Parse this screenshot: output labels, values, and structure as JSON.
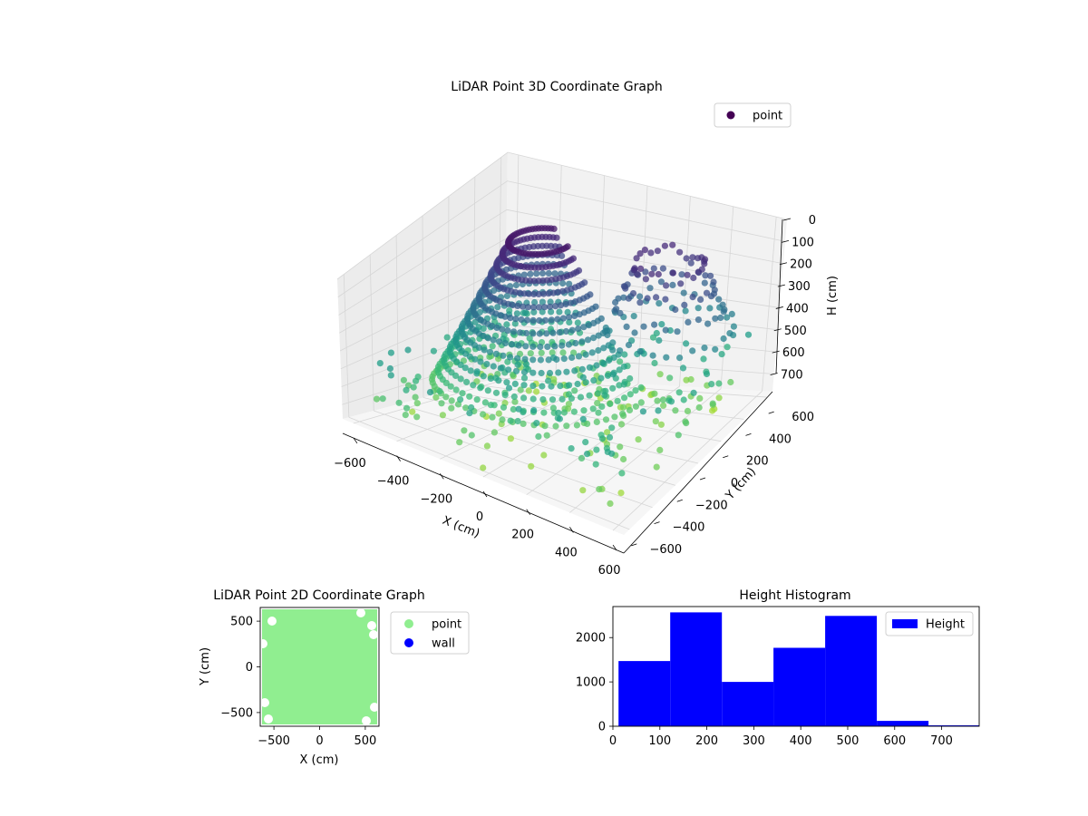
{
  "chart_data": [
    {
      "type": "scatter",
      "title": "LiDAR Point 3D Coordinate Graph",
      "xlabel": "X (cm)",
      "ylabel": "Y (cm)",
      "zlabel": "H (cm)",
      "xlim": [
        -650,
        650
      ],
      "ylim": [
        -650,
        650
      ],
      "zlim": [
        780,
        0
      ],
      "x_ticks": [
        -600,
        -400,
        -200,
        0,
        200,
        400,
        600
      ],
      "y_ticks": [
        -600,
        -400,
        -200,
        0,
        200,
        400,
        600
      ],
      "z_ticks": [
        0,
        100,
        200,
        300,
        400,
        500,
        600,
        700
      ],
      "colormap": "viridis",
      "legend": {
        "position": "top-right",
        "entries": [
          {
            "label": "point",
            "color": "#440154"
          }
        ]
      },
      "grid": true
    },
    {
      "type": "scatter",
      "title": "LiDAR Point 2D Coordinate Graph",
      "xlabel": "X (cm)",
      "ylabel": "Y (cm)",
      "xlim": [
        -650,
        650
      ],
      "ylim": [
        -650,
        650
      ],
      "x_ticks": [
        -500,
        0,
        500
      ],
      "y_ticks": [
        500,
        0,
        -500
      ],
      "series": [
        {
          "name": "point",
          "color": "#90ee90"
        },
        {
          "name": "wall",
          "color": "#0000ff"
        }
      ],
      "legend": {
        "position": "outside-right"
      },
      "grid": false
    },
    {
      "type": "bar",
      "title": "Height Histogram",
      "bins": [
        [
          12,
          122
        ],
        [
          122,
          232
        ],
        [
          232,
          342
        ],
        [
          342,
          452
        ],
        [
          452,
          562
        ],
        [
          562,
          672
        ],
        [
          672,
          780
        ]
      ],
      "values": [
        1470,
        2570,
        1000,
        1770,
        2490,
        120,
        20
      ],
      "xlim": [
        0,
        780
      ],
      "ylim": [
        0,
        2700
      ],
      "x_ticks": [
        0,
        100,
        200,
        300,
        400,
        500,
        600,
        700
      ],
      "y_ticks": [
        0,
        1000,
        2000
      ],
      "series": [
        {
          "name": "Height",
          "color": "#0000ff"
        }
      ],
      "legend": {
        "position": "top-right"
      },
      "grid": false
    }
  ]
}
